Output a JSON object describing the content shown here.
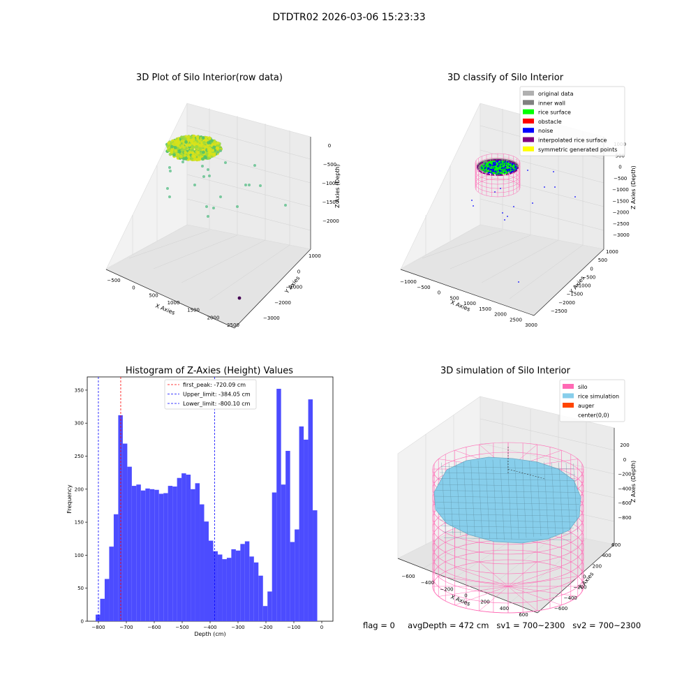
{
  "suptitle": "DTDTR02 2026-03-06 15:23:33",
  "status": {
    "flag": "flag = 0",
    "avg_depth": "avgDepth = 472 cm",
    "sv1": "sv1 = 700~2300",
    "sv2": "sv2 = 700~2300"
  },
  "colors": {
    "hist_bar": "#4c4cff",
    "first_peak": "#ff0000",
    "limit_line": "#0000ff",
    "silo": "#ff69b4",
    "rice": "#87ceeb",
    "auger": "#ff4500",
    "rice_surface": "#00ff00",
    "noise": "#0000ff",
    "interpolated": "#800080",
    "symmetric": "#ffff00",
    "original": "#b0b0b0",
    "inner_wall": "#808080",
    "obstacle": "#ff0000"
  },
  "chart_data": [
    {
      "type": "scatter",
      "title": "3D Plot of Silo Interior(row data)",
      "xlabel": "X Axies",
      "ylabel": "Y Axies",
      "zlabel": "Z Axies (Depth)",
      "x_ticks": [
        "−500",
        "0",
        "500",
        "1000",
        "1500",
        "2000",
        "2500"
      ],
      "y_ticks": [
        "1000",
        "0",
        "−1000",
        "−2000",
        "−3000"
      ],
      "z_ticks": [
        "0",
        "−500",
        "−1000",
        "−1500",
        "−2000"
      ]
    },
    {
      "type": "scatter",
      "title": "3D classify of Silo Interior",
      "xlabel": "X Axies",
      "ylabel": "Y Axies",
      "zlabel": "Z Axies (Depth)",
      "x_ticks": [
        "−1000",
        "−500",
        "0",
        "500",
        "1000",
        "1500",
        "2000",
        "2500",
        "3000"
      ],
      "y_ticks": [
        "1000",
        "500",
        "0",
        "−500",
        "−1000",
        "−1500",
        "−2000",
        "−2500"
      ],
      "z_ticks": [
        "1000",
        "500",
        "0",
        "−500",
        "−1000",
        "−1500",
        "−2000",
        "−2500",
        "−3000"
      ],
      "legend": [
        {
          "label": "original data",
          "color": "#b0b0b0"
        },
        {
          "label": "inner wall",
          "color": "#808080"
        },
        {
          "label": "rice surface",
          "color": "#00ff00"
        },
        {
          "label": "obstacle",
          "color": "#ff0000"
        },
        {
          "label": "noise",
          "color": "#0000ff"
        },
        {
          "label": "interpolated rice surface",
          "color": "#800080"
        },
        {
          "label": "symmetric generated points",
          "color": "#ffff00"
        }
      ],
      "legend_position": "top-right"
    },
    {
      "type": "bar",
      "title": "Histogram of Z-Axies (Height) Values",
      "xlabel": "Depth (cm)",
      "ylabel": "Frequency",
      "xlim": [
        -840,
        40
      ],
      "ylim": [
        0,
        370
      ],
      "x_ticks": [
        -800,
        -700,
        -600,
        -500,
        -400,
        -300,
        -200,
        -100,
        0
      ],
      "y_ticks": [
        0,
        50,
        100,
        150,
        200,
        250,
        300,
        350
      ],
      "bin_start": -810,
      "bin_width": 16.2,
      "values": [
        10,
        34,
        64,
        113,
        162,
        312,
        269,
        234,
        205,
        207,
        198,
        201,
        200,
        199,
        193,
        194,
        205,
        204,
        217,
        224,
        222,
        200,
        209,
        177,
        151,
        122,
        106,
        101,
        94,
        96,
        109,
        107,
        117,
        121,
        98,
        89,
        69,
        23,
        45,
        195,
        352,
        207,
        258,
        120,
        139,
        295,
        275,
        336,
        168
      ],
      "vlines": [
        {
          "label": "first_peak: -720.09 cm",
          "x": -720.09,
          "color": "#ff0000"
        },
        {
          "label": "Upper_limit: -384.05 cm",
          "x": -384.05,
          "color": "#0000ff"
        },
        {
          "label": "Lower_limit: -800.10 cm",
          "x": -800.1,
          "color": "#0000ff"
        }
      ],
      "legend_position": "top-center"
    },
    {
      "type": "surface",
      "title": "3D simulation of Silo Interior",
      "xlabel": "X Axies",
      "ylabel": "Y Axies",
      "zlabel": "Z Axes (Depth)",
      "x_ticks": [
        "−600",
        "−400",
        "−200",
        "0",
        "200",
        "400",
        "600"
      ],
      "y_ticks": [
        "600",
        "400",
        "200",
        "0",
        "−200",
        "−400",
        "−600"
      ],
      "z_ticks": [
        "200",
        "0",
        "−200",
        "−400",
        "−600",
        "−800"
      ],
      "legend": [
        {
          "label": "silo",
          "color": "#ff69b4"
        },
        {
          "label": "rice simulation",
          "color": "#87ceeb"
        },
        {
          "label": "auger",
          "color": "#ff4500"
        },
        {
          "label": "center(0,0)",
          "color": ""
        }
      ],
      "legend_position": "top-right"
    }
  ]
}
